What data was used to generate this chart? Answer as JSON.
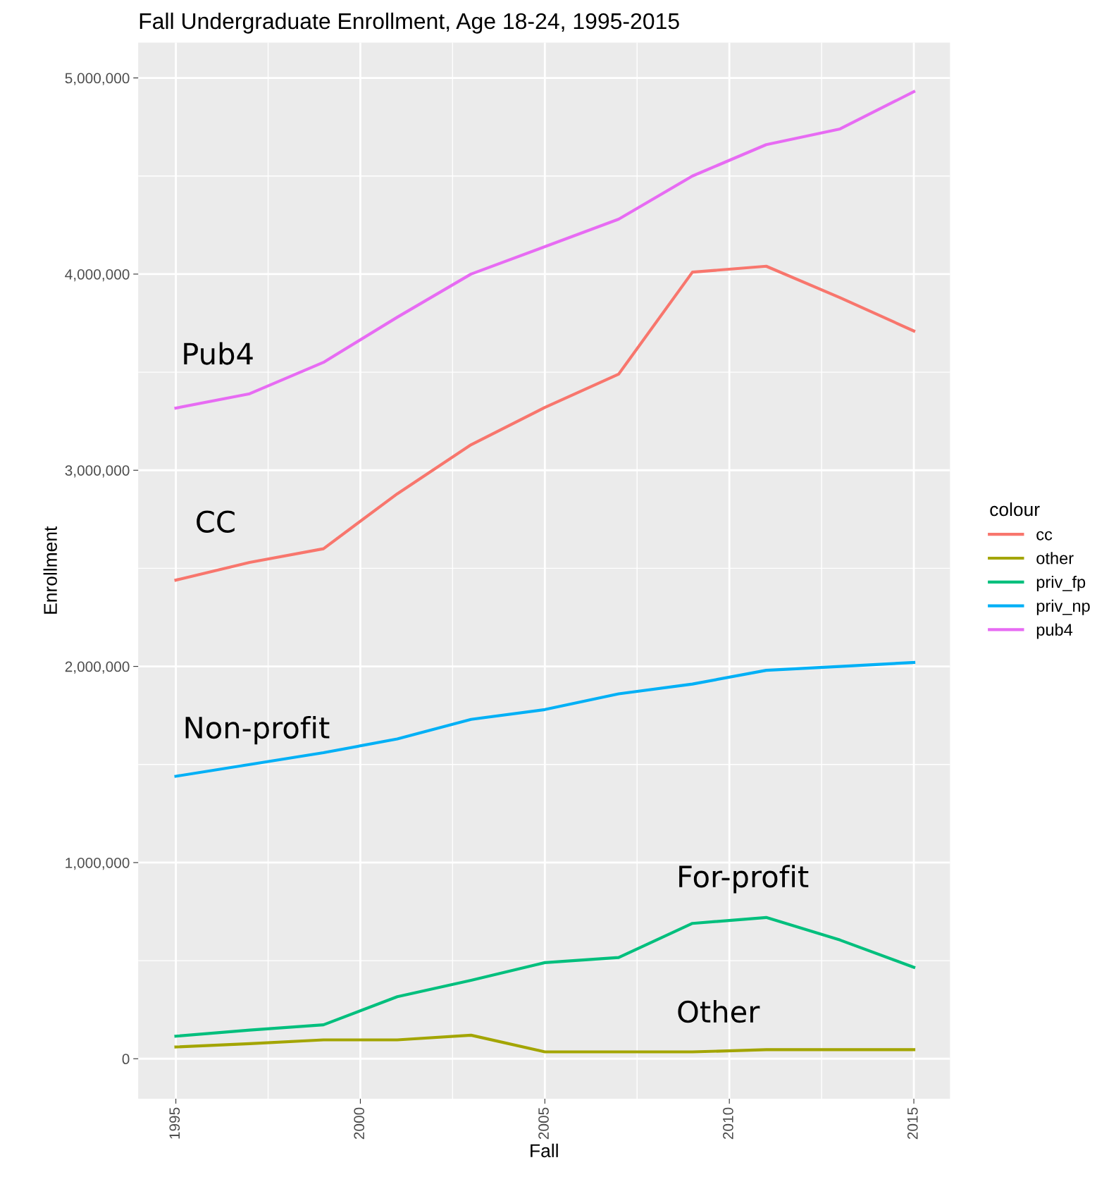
{
  "chart_data": {
    "type": "line",
    "title": "Fall Undergraduate Enrollment, Age 18-24, 1995-2015",
    "xlabel": "Fall",
    "ylabel": "Enrollment",
    "legend_title": "colour",
    "x": [
      1995,
      1997,
      1999,
      2001,
      2003,
      2005,
      2007,
      2009,
      2011,
      2013,
      2015
    ],
    "series": [
      {
        "name": "cc",
        "color": "#f8766d",
        "values": [
          2440000,
          2530000,
          2600000,
          2880000,
          3130000,
          3320000,
          3490000,
          4010000,
          4040000,
          3880000,
          3710000
        ]
      },
      {
        "name": "other",
        "color": "#a3a500",
        "values": [
          60000,
          77000,
          96000,
          96000,
          120000,
          35000,
          35000,
          35000,
          46000,
          46000,
          46000
        ]
      },
      {
        "name": "priv_fp",
        "color": "#00bf7d",
        "values": [
          115000,
          146000,
          173000,
          316000,
          400000,
          490000,
          516000,
          690000,
          720000,
          605000,
          466000
        ]
      },
      {
        "name": "priv_np",
        "color": "#00b0f6",
        "values": [
          1440000,
          1500000,
          1560000,
          1630000,
          1730000,
          1780000,
          1860000,
          1910000,
          1980000,
          2000000,
          2020000
        ]
      },
      {
        "name": "pub4",
        "color": "#e76bf3",
        "values": [
          3317000,
          3390000,
          3550000,
          3780000,
          4000000,
          4140000,
          4280000,
          4500000,
          4660000,
          4740000,
          4930000
        ]
      }
    ],
    "annotations": [
      "Pub4",
      "CC",
      "Non-profit",
      "For-profit",
      "Other"
    ],
    "xlim": [
      1993.98,
      2015.98
    ],
    "xticks": [
      1995,
      2000,
      2005,
      2010,
      2015
    ],
    "ylim": [
      -204000,
      5180000
    ],
    "yticks": [
      {
        "value": 0,
        "label": "0"
      },
      {
        "value": 1000000,
        "label": "1,000,000"
      },
      {
        "value": 2000000,
        "label": "2,000,000"
      },
      {
        "value": 3000000,
        "label": "3,000,000"
      },
      {
        "value": 4000000,
        "label": "4,000,000"
      },
      {
        "value": 5000000,
        "label": "5,000,000"
      }
    ],
    "grid": true,
    "legend": "right",
    "marker": "none",
    "line_style": "solid"
  }
}
